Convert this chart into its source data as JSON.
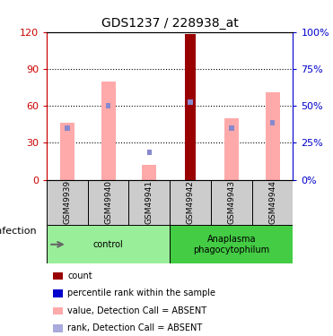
{
  "title": "GDS1237 / 228938_at",
  "samples": [
    "GSM49939",
    "GSM49940",
    "GSM49941",
    "GSM49942",
    "GSM49943",
    "GSM49944"
  ],
  "pink_values": [
    46,
    80,
    12,
    0,
    50,
    71
  ],
  "blue_ranks": [
    42,
    60,
    22,
    63,
    42,
    46
  ],
  "red_count": [
    0,
    0,
    0,
    118,
    0,
    0
  ],
  "ylim_left": [
    0,
    120
  ],
  "ylim_right": [
    0,
    100
  ],
  "yticks_left": [
    0,
    30,
    60,
    90,
    120
  ],
  "yticks_right": [
    0,
    25,
    50,
    75,
    100
  ],
  "ytick_labels_left": [
    "0",
    "30",
    "60",
    "90",
    "120"
  ],
  "ytick_labels_right": [
    "0%",
    "25%",
    "50%",
    "75%",
    "100%"
  ],
  "groups": [
    {
      "label": "control",
      "indices": [
        0,
        1,
        2
      ],
      "color": "#99ee99"
    },
    {
      "label": "Anaplasma\nphagocytophilum",
      "indices": [
        3,
        4,
        5
      ],
      "color": "#44cc44"
    }
  ],
  "infection_label": "infection",
  "left_axis_color": "#cc0000",
  "right_axis_color": "#0000cc",
  "pink_color": "#ffaaaa",
  "blue_color": "#8888cc",
  "light_blue_color": "#aaaadd",
  "red_color": "#990000",
  "legend_items": [
    {
      "color": "#990000",
      "label": "count"
    },
    {
      "color": "#0000cc",
      "label": "percentile rank within the sample"
    },
    {
      "color": "#ffaaaa",
      "label": "value, Detection Call = ABSENT"
    },
    {
      "color": "#aaaadd",
      "label": "rank, Detection Call = ABSENT"
    }
  ],
  "bg_color": "#cccccc",
  "plot_bg": "#ffffff"
}
